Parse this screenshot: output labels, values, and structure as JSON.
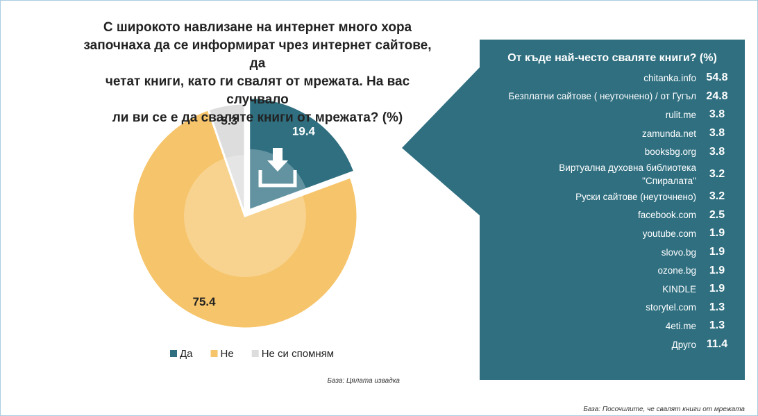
{
  "chart_data": [
    {
      "type": "pie",
      "title": "С широкото навлизане на интернет много хора\nзапочнаха да се информират чрез интернет сайтове, да\nчетат книги, като ги свалят от мрежата. На вас случвало\nли ви се е да сваляте книги от мрежата? (%)",
      "categories": [
        "Да",
        "Не",
        "Не си спомням"
      ],
      "values": [
        19.4,
        75.4,
        5.3
      ],
      "colors": [
        "#2f6f80",
        "#f6c46a",
        "#dddddd"
      ],
      "exploded": [
        true,
        false,
        false
      ],
      "legend": "bottom",
      "note": "База: Цялата извадка"
    },
    {
      "type": "table",
      "title": "От къде най-често сваляте книги? (%)",
      "categories": [
        "chitanka.info",
        "Безплатни сайтове ( неуточнено) / от Гугъл",
        "rulit.me",
        "zamunda.net",
        "booksbg.org",
        "Виртуална духовна библиотека\n\"Спиралата\"",
        "Руски сайтове (неуточнено)",
        "facebook.com",
        "youtube.com",
        "slovo.bg",
        "ozone.bg",
        "KINDLE",
        "storytel.com",
        "4eti.me",
        "Друго"
      ],
      "values": [
        54.8,
        24.8,
        3.8,
        3.8,
        3.8,
        3.2,
        3.2,
        2.5,
        1.9,
        1.9,
        1.9,
        1.9,
        1.3,
        1.3,
        11.4
      ],
      "color": "#2f6f80",
      "note": "База: Посочилите, че свалят книги от мрежата"
    }
  ]
}
